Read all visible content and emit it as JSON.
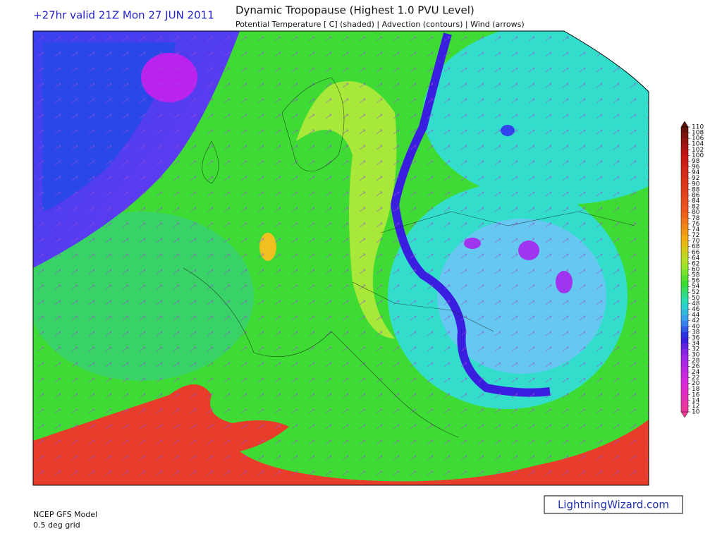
{
  "header": {
    "valid_time": "+27hr valid 21Z Mon 27 JUN 2011",
    "title": "Dynamic Tropopause (Highest 1.0 PVU Level)",
    "subtitle": "Potential Temperature [ C] (shaded) | Advection (contours) | Wind (arrows)"
  },
  "colorbar": {
    "levels": [
      110,
      108,
      106,
      104,
      102,
      100,
      98,
      96,
      94,
      92,
      90,
      88,
      86,
      84,
      82,
      80,
      78,
      76,
      74,
      72,
      70,
      68,
      66,
      64,
      62,
      60,
      58,
      56,
      54,
      52,
      50,
      48,
      46,
      44,
      42,
      40,
      38,
      36,
      34,
      32,
      30,
      28,
      26,
      24,
      22,
      20,
      18,
      16,
      14,
      12,
      10
    ]
  },
  "footer": {
    "model": "NCEP GFS Model",
    "grid": "0.5 deg grid",
    "watermark": "LightningWizard.com"
  }
}
